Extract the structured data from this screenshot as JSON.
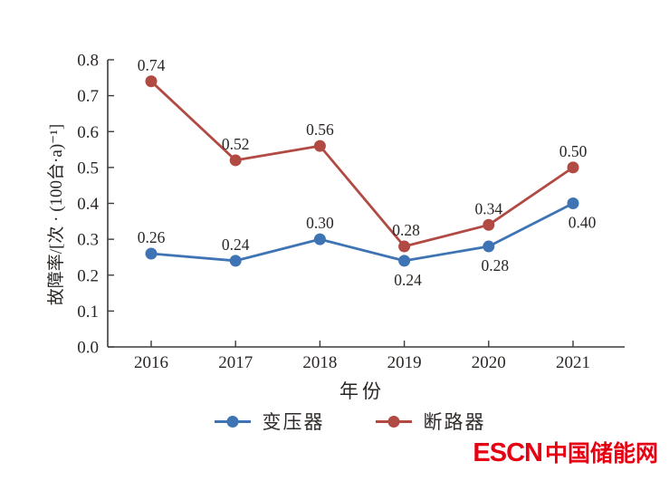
{
  "chart_data": {
    "type": "line",
    "categories": [
      "2016",
      "2017",
      "2018",
      "2019",
      "2020",
      "2021"
    ],
    "xlabel": "年份",
    "ylabel": "故障率/[次 · (100台·a)⁻¹]",
    "ylim": [
      0.0,
      0.8
    ],
    "ytick_step": 0.1,
    "grid": false,
    "legend_position": "bottom",
    "series": [
      {
        "name": "变压器",
        "color": "#3e74b4",
        "values": [
          0.26,
          0.24,
          0.3,
          0.24,
          0.28,
          0.4
        ],
        "label_pos": [
          "above",
          "above",
          "above",
          "below",
          "below",
          "below"
        ],
        "label_dx": [
          0,
          0,
          0,
          4,
          7,
          10
        ]
      },
      {
        "name": "断路器",
        "color": "#b24a44",
        "values": [
          0.74,
          0.52,
          0.56,
          0.28,
          0.34,
          0.5
        ],
        "label_pos": [
          "above",
          "above",
          "above",
          "above",
          "above",
          "above"
        ],
        "label_dx": [
          0,
          0,
          0,
          2,
          0,
          0
        ]
      }
    ]
  },
  "axis": {
    "color": "#3c3c3c"
  },
  "watermark": {
    "brand": "ESCN",
    "name": "中国储能网",
    "color": "#e60012"
  }
}
